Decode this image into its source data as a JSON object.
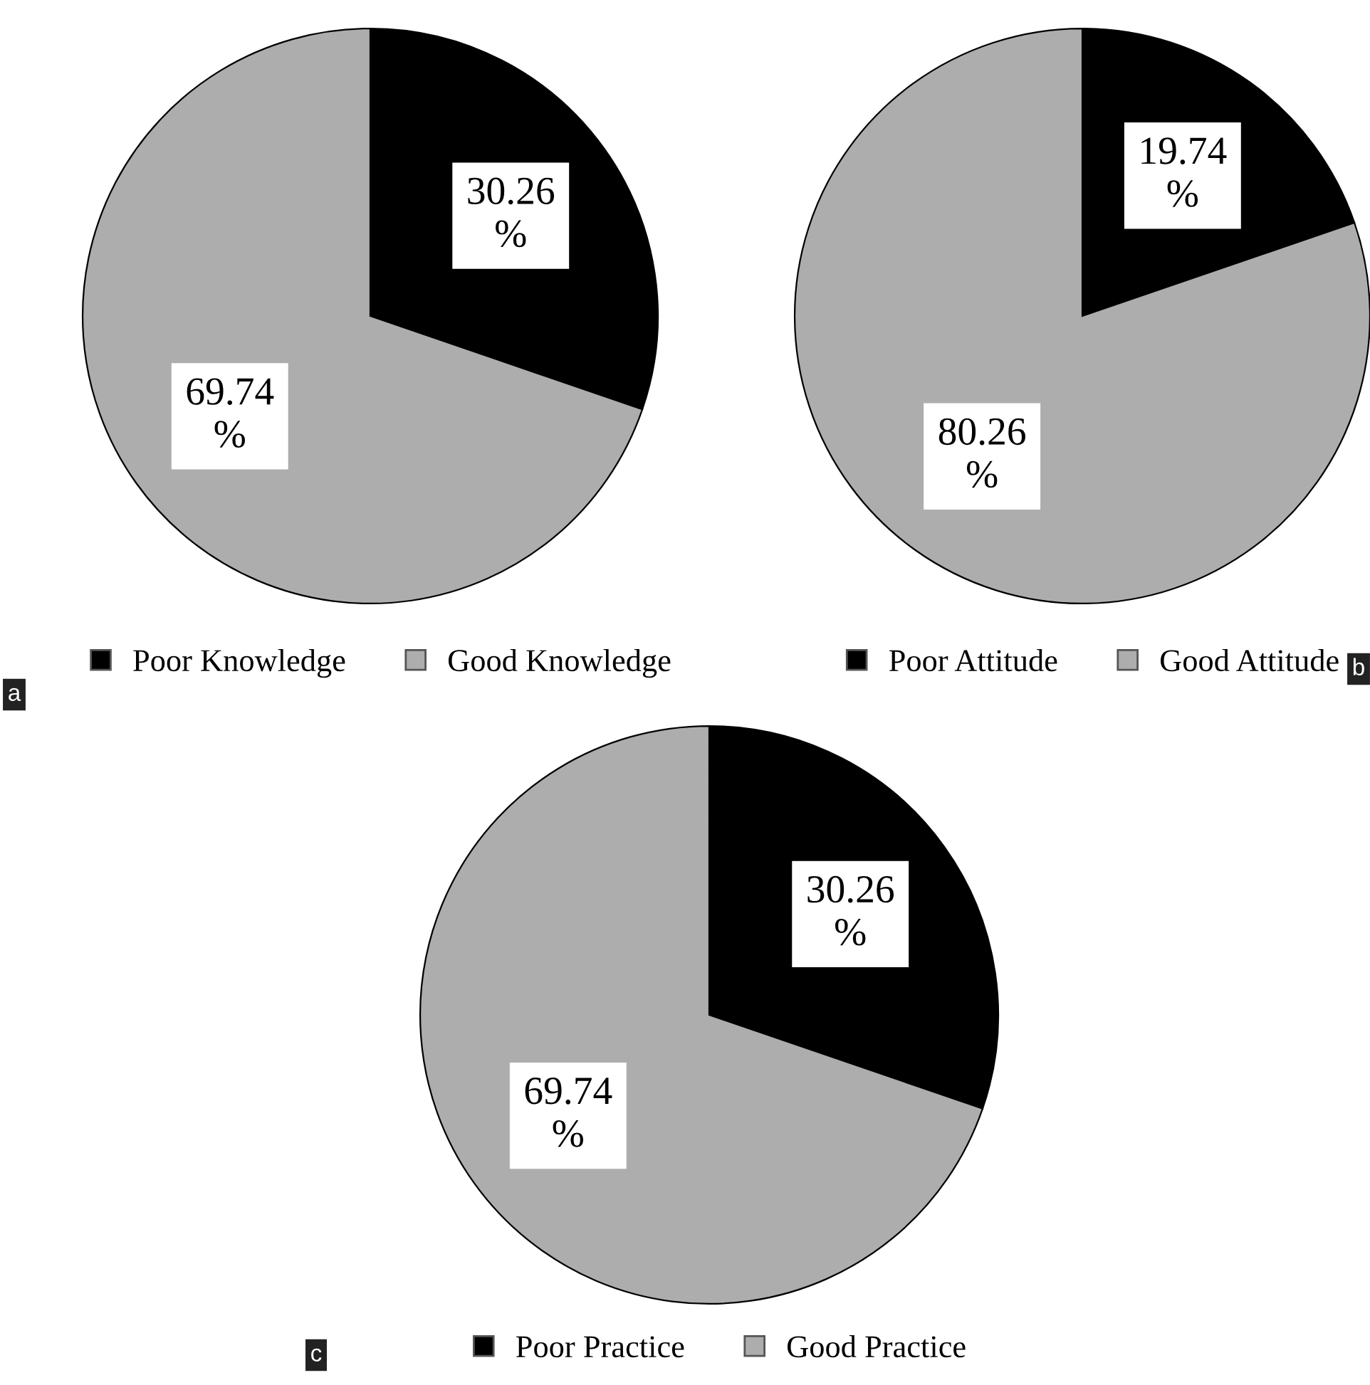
{
  "chart_data": [
    {
      "type": "pie",
      "categories": [
        "Poor Knowledge",
        "Good Knowledge"
      ],
      "values": [
        30.26,
        69.74
      ],
      "colors": [
        "#000000",
        "#adadad"
      ],
      "value_labels": [
        "30.26\n%",
        "69.74\n%"
      ],
      "legend": "bottom",
      "annotations": [
        "a"
      ]
    },
    {
      "type": "pie",
      "categories": [
        "Poor Attitude",
        "Good Attitude"
      ],
      "values": [
        19.74,
        80.26
      ],
      "colors": [
        "#000000",
        "#adadad"
      ],
      "value_labels": [
        "19.74\n%",
        "80.26\n%"
      ],
      "legend": "bottom",
      "annotations": [
        "b"
      ]
    },
    {
      "type": "pie",
      "categories": [
        "Poor Practice",
        "Good Practice"
      ],
      "values": [
        30.26,
        69.74
      ],
      "colors": [
        "#000000",
        "#adadad"
      ],
      "value_labels": [
        "30.26\n%",
        "69.74\n%"
      ],
      "legend": "bottom",
      "annotations": [
        "c"
      ]
    }
  ]
}
